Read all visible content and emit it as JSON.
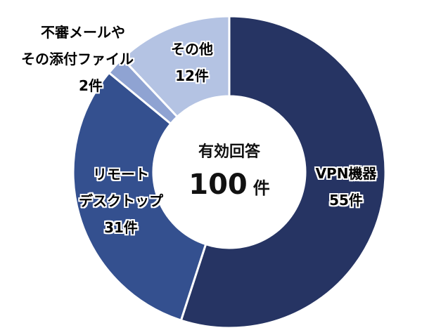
{
  "chart_data": {
    "type": "pie",
    "variant": "donut",
    "title": "",
    "center_label": {
      "line1": "有効回答",
      "value": "100",
      "unit": "件"
    },
    "categories": [
      "VPN機器",
      "リモートデスクトップ",
      "不審メールやその添付ファイル",
      "その他"
    ],
    "values": [
      55,
      31,
      2,
      12
    ],
    "unit": "件",
    "total": 100,
    "start_angle_deg": 0,
    "direction": "clockwise",
    "colors": [
      "#263463",
      "#34508f",
      "#8fa3d2",
      "#b4c3e3"
    ],
    "legend": "none (data labels)"
  },
  "labels": {
    "vpn": {
      "line1": "VPN機器",
      "line2": "55件"
    },
    "remote": {
      "line1": "リモート",
      "line2": "デスクトップ",
      "line3": "31件"
    },
    "mail": {
      "line1": "不審メールや",
      "line2": "その添付ファイル",
      "line3": "2件"
    },
    "other": {
      "line1": "その他",
      "line2": "12件"
    }
  },
  "center": {
    "title": "有効回答",
    "value": "100",
    "unit": "件"
  }
}
